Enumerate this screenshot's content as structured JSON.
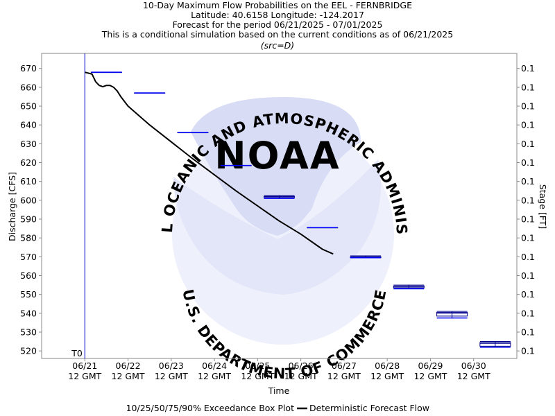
{
  "chart_data": {
    "type": "line",
    "title_lines": [
      "10-Day Maximum Flow Probabilities on the EEL - FERNBRIDGE",
      "Latitude: 40.6158 Longitude: -124.2017",
      "Forecast for the period 06/21/2025 - 07/01/2025",
      "This is a conditional simulation based on the current conditions as of 06/21/2025"
    ],
    "subtitle": "(src=D)",
    "xlabel": "Time",
    "ylabel": "Discharge [CFS]",
    "y2label": "Stage [FT]",
    "ylim": [
      516,
      678
    ],
    "yticks": [
      520,
      530,
      540,
      550,
      560,
      570,
      580,
      590,
      600,
      610,
      620,
      630,
      640,
      650,
      660,
      670
    ],
    "y2_tick_label": "0.1",
    "xlim": [
      "2025-06-20T12:00",
      "2025-07-01T12:00"
    ],
    "xticks": [
      {
        "x": "2025-06-21T12:00",
        "date": "06/21",
        "time": "12 GMT"
      },
      {
        "x": "2025-06-22T12:00",
        "date": "06/22",
        "time": "12 GMT"
      },
      {
        "x": "2025-06-23T12:00",
        "date": "06/23",
        "time": "12 GMT"
      },
      {
        "x": "2025-06-24T12:00",
        "date": "06/24",
        "time": "12 GMT"
      },
      {
        "x": "2025-06-25T12:00",
        "date": "06/25",
        "time": "12 GMT"
      },
      {
        "x": "2025-06-26T12:00",
        "date": "06/26",
        "time": "12 GMT"
      },
      {
        "x": "2025-06-27T12:00",
        "date": "06/27",
        "time": "12 GMT"
      },
      {
        "x": "2025-06-28T12:00",
        "date": "06/28",
        "time": "12 GMT"
      },
      {
        "x": "2025-06-29T12:00",
        "date": "06/29",
        "time": "12 GMT"
      },
      {
        "x": "2025-06-30T12:00",
        "date": "06/30",
        "time": "12 GMT"
      }
    ],
    "t0": {
      "x": "2025-06-21T12:00",
      "label": "T0"
    },
    "series": [
      {
        "name": "Deterministic Forecast Flow",
        "color": "#000000",
        "points": [
          [
            "2025-06-21T12:00",
            668
          ],
          [
            "2025-06-21T14:00",
            667.5
          ],
          [
            "2025-06-21T16:00",
            667
          ],
          [
            "2025-06-21T18:00",
            663
          ],
          [
            "2025-06-21T20:00",
            661
          ],
          [
            "2025-06-21T22:00",
            660.3
          ],
          [
            "2025-06-22T00:00",
            661
          ],
          [
            "2025-06-22T02:00",
            661
          ],
          [
            "2025-06-22T04:00",
            660
          ],
          [
            "2025-06-22T06:00",
            658
          ],
          [
            "2025-06-22T08:00",
            655
          ],
          [
            "2025-06-22T12:00",
            650
          ],
          [
            "2025-06-23T00:00",
            640
          ],
          [
            "2025-06-24T00:00",
            622
          ],
          [
            "2025-06-25T00:00",
            605
          ],
          [
            "2025-06-26T00:00",
            589
          ],
          [
            "2025-06-26T12:00",
            582
          ],
          [
            "2025-06-27T00:00",
            574
          ],
          [
            "2025-06-27T06:00",
            571.5
          ]
        ]
      }
    ],
    "boxplots": {
      "name": "10/25/50/75/90% Exceedance Box Plot",
      "color": "#00008b",
      "items": [
        {
          "x": "2025-06-22T00:00",
          "p90": 668,
          "p75": 668,
          "p50": 668,
          "p25": 668,
          "p10": 668
        },
        {
          "x": "2025-06-23T00:00",
          "p90": 657,
          "p75": 657,
          "p50": 657,
          "p25": 657,
          "p10": 657
        },
        {
          "x": "2025-06-24T00:00",
          "p90": 636,
          "p75": 636,
          "p50": 636,
          "p25": 636,
          "p10": 636
        },
        {
          "x": "2025-06-25T00:00",
          "p90": 618.5,
          "p75": 618.5,
          "p50": 618.5,
          "p25": 618.5,
          "p10": 618.5
        },
        {
          "x": "2025-06-26T00:00",
          "p90": 602.5,
          "p75": 602,
          "p50": 602,
          "p25": 601.5,
          "p10": 601
        },
        {
          "x": "2025-06-27T00:00",
          "p90": 585.5,
          "p75": 585.5,
          "p50": 585.5,
          "p25": 585.5,
          "p10": 585.5
        },
        {
          "x": "2025-06-28T00:00",
          "p90": 570.5,
          "p75": 570,
          "p50": 570,
          "p25": 569.5,
          "p10": 569.5
        },
        {
          "x": "2025-06-29T00:00",
          "p90": 555,
          "p75": 554.5,
          "p50": 554,
          "p25": 553.5,
          "p10": 553
        },
        {
          "x": "2025-06-30T00:00",
          "p90": 541,
          "p75": 540.5,
          "p50": 540,
          "p25": 538.5,
          "p10": 537.5
        },
        {
          "x": "2025-07-01T00:00",
          "p90": 525,
          "p75": 524.5,
          "p50": 524,
          "p25": 522.5,
          "p10": 522
        }
      ]
    },
    "legend": {
      "position": "bottom",
      "items": [
        "10/25/50/75/90% Exceedance Box Plot",
        "Deterministic Forecast Flow"
      ]
    },
    "grid": false,
    "watermark": {
      "agency": "NOAA",
      "text_top": "NATIONAL OCEANIC AND ATMOSPHERIC ADMINISTRATION",
      "text_bottom": "U.S. DEPARTMENT OF COMMERCE",
      "color": "#c8cdf0"
    }
  }
}
